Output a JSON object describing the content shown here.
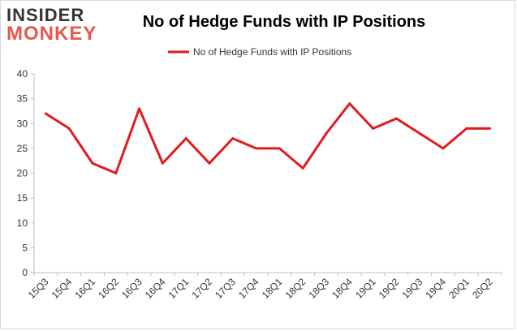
{
  "logo": {
    "line1": "INSIDER",
    "line2": "MONKEY"
  },
  "chart_data": {
    "type": "line",
    "title": "No of Hedge Funds with IP Positions",
    "xlabel": "",
    "ylabel": "",
    "categories": [
      "15Q3",
      "15Q4",
      "16Q1",
      "16Q2",
      "16Q3",
      "16Q4",
      "17Q1",
      "17Q2",
      "17Q3",
      "17Q4",
      "18Q1",
      "18Q2",
      "18Q3",
      "18Q4",
      "19Q1",
      "19Q2",
      "19Q3",
      "19Q4",
      "20Q1",
      "20Q2"
    ],
    "series": [
      {
        "name": "No of Hedge Funds with IP Positions",
        "values": [
          32,
          29,
          22,
          20,
          33,
          22,
          27,
          22,
          27,
          25,
          25,
          21,
          28,
          34,
          29,
          31,
          28,
          25,
          29,
          29
        ],
        "color": "#e31a1c"
      }
    ],
    "ylim": [
      0,
      40
    ],
    "yticks": [
      0,
      5,
      10,
      15,
      20,
      25,
      30,
      35,
      40
    ],
    "grid": false,
    "legend": "top-center"
  }
}
